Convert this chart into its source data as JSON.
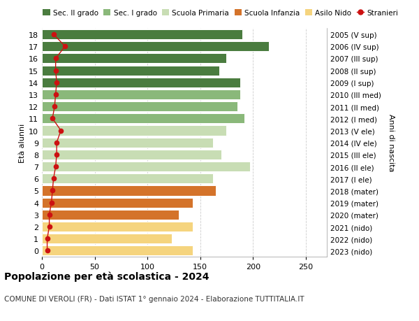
{
  "ages": [
    0,
    1,
    2,
    3,
    4,
    5,
    6,
    7,
    8,
    9,
    10,
    11,
    12,
    13,
    14,
    15,
    16,
    17,
    18
  ],
  "values": [
    143,
    123,
    143,
    130,
    143,
    165,
    162,
    197,
    170,
    162,
    175,
    192,
    185,
    188,
    188,
    168,
    175,
    215,
    190
  ],
  "stranieri": [
    5,
    5,
    7,
    7,
    9,
    10,
    11,
    13,
    14,
    14,
    18,
    10,
    12,
    13,
    14,
    13,
    13,
    22,
    11
  ],
  "bar_colors": [
    "#f5d47e",
    "#f5d47e",
    "#f5d47e",
    "#d4732a",
    "#d4732a",
    "#d4732a",
    "#c8ddb4",
    "#c8ddb4",
    "#c8ddb4",
    "#c8ddb4",
    "#c8ddb4",
    "#8ab87a",
    "#8ab87a",
    "#8ab87a",
    "#4a7c3f",
    "#4a7c3f",
    "#4a7c3f",
    "#4a7c3f",
    "#4a7c3f"
  ],
  "right_labels": [
    "2023 (nido)",
    "2022 (nido)",
    "2021 (nido)",
    "2020 (mater)",
    "2019 (mater)",
    "2018 (mater)",
    "2017 (I ele)",
    "2016 (II ele)",
    "2015 (III ele)",
    "2014 (IV ele)",
    "2013 (V ele)",
    "2012 (I med)",
    "2011 (II med)",
    "2010 (III med)",
    "2009 (I sup)",
    "2008 (II sup)",
    "2007 (III sup)",
    "2006 (IV sup)",
    "2005 (V sup)"
  ],
  "ylabel_left": "Età alunni",
  "ylabel_right": "Anni di nascita",
  "xlim": [
    0,
    270
  ],
  "title_main": "Popolazione per età scolastica - 2024",
  "title_sub": "COMUNE DI VEROLI (FR) - Dati ISTAT 1° gennaio 2024 - Elaborazione TUTTITALIA.IT",
  "legend_labels": [
    "Sec. II grado",
    "Sec. I grado",
    "Scuola Primaria",
    "Scuola Infanzia",
    "Asilo Nido",
    "Stranieri"
  ],
  "legend_colors": [
    "#4a7c3f",
    "#8ab87a",
    "#c8ddb4",
    "#d4732a",
    "#f5d47e",
    "#cc1111"
  ],
  "bg_color": "#ffffff",
  "grid_color": "#cccccc",
  "stranieri_line_color": "#cc1111"
}
